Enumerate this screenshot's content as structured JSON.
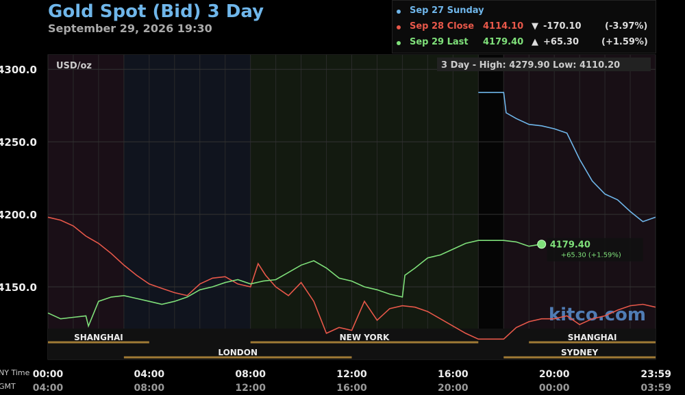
{
  "header": {
    "title": "Gold Spot (Bid) 3 Day",
    "subtitle": "September 29, 2026 19:30"
  },
  "legend": [
    {
      "label": "Sep 27 Sunday",
      "value": "",
      "arrow": "",
      "change": "",
      "pct": "",
      "color": "#6fb6ea"
    },
    {
      "label": "Sep 28 Close",
      "value": "4114.10",
      "arrow": "▼",
      "change": "-170.10",
      "pct": "(-3.97%)",
      "color": "#e8584a"
    },
    {
      "label": "Sep 29 Last",
      "value": "4179.40",
      "arrow": "▲",
      "change": "+65.30",
      "pct": "(+1.59%)",
      "color": "#7fe07a"
    }
  ],
  "chart_data": {
    "type": "line",
    "unit_label": "USD/oz",
    "range_label": "3 Day - High: 4279.90   Low: 4110.20",
    "ylim": [
      4100,
      4310
    ],
    "y_ticks": [
      "4300.0",
      "4250.0",
      "4200.0",
      "4150.0"
    ],
    "y_tick_values": [
      4300,
      4250,
      4200,
      4150
    ],
    "x_range_hours": [
      0,
      24
    ],
    "x_tick_labels_ny": [
      "00:00",
      "04:00",
      "08:00",
      "12:00",
      "16:00",
      "20:00",
      "23:59"
    ],
    "x_tick_labels_gmt": [
      "04:00",
      "08:00",
      "12:00",
      "16:00",
      "20:00",
      "00:00",
      "03:59"
    ],
    "x_tick_hours": [
      0,
      4,
      8,
      12,
      16,
      20,
      24
    ],
    "axis_row_labels": [
      "NY Time",
      "GMT"
    ],
    "watermark": "kitco.com",
    "sessions": [
      {
        "name": "SHANGHAI",
        "start": 0,
        "end": 4,
        "row": 0
      },
      {
        "name": "LONDON",
        "start": 3,
        "end": 12,
        "row": 1
      },
      {
        "name": "NEW YORK",
        "start": 8,
        "end": 17,
        "row": 0
      },
      {
        "name": "SHANGHAI",
        "start": 19,
        "end": 24,
        "row": 0
      },
      {
        "name": "SYDNEY",
        "start": 18,
        "end": 24,
        "row": 1
      }
    ],
    "series": [
      {
        "name": "Sep 27 Sunday",
        "color": "#6fb6ea",
        "x": [
          17,
          18,
          18.1,
          18.5,
          19,
          19.5,
          20,
          20.5,
          21,
          21.5,
          22,
          22.5,
          23,
          23.5,
          24
        ],
        "y": [
          4284,
          4284,
          4270,
          4266,
          4262,
          4261,
          4259,
          4256,
          4238,
          4223,
          4214,
          4210,
          4202,
          4195,
          4198
        ]
      },
      {
        "name": "Sep 28 Close",
        "color": "#e8584a",
        "x": [
          0,
          0.5,
          1,
          1.5,
          2,
          2.5,
          3,
          3.5,
          4,
          4.5,
          5,
          5.5,
          6,
          6.5,
          7,
          7.5,
          8,
          8.3,
          8.6,
          9,
          9.5,
          10,
          10.5,
          11,
          11.5,
          12,
          12.5,
          13,
          13.5,
          14,
          14.5,
          15,
          15.5,
          16,
          16.5,
          17,
          18,
          18.5,
          19,
          19.5,
          20,
          20.5,
          21,
          21.5,
          22,
          22.5,
          23,
          23.5,
          24
        ],
        "y": [
          4198,
          4196,
          4192,
          4185,
          4180,
          4173,
          4165,
          4158,
          4152,
          4149,
          4146,
          4144,
          4152,
          4156,
          4157,
          4152,
          4150,
          4166,
          4158,
          4150,
          4144,
          4153,
          4140,
          4118,
          4122,
          4120,
          4140,
          4127,
          4135,
          4137,
          4136,
          4133,
          4128,
          4123,
          4118,
          4114,
          4114,
          4122,
          4126,
          4128,
          4128,
          4130,
          4124,
          4128,
          4130,
          4134,
          4137,
          4138,
          4136
        ]
      },
      {
        "name": "Sep 29 Last",
        "color": "#7fe07a",
        "x": [
          0,
          0.5,
          1,
          1.5,
          1.6,
          2,
          2.5,
          3,
          3.5,
          4,
          4.5,
          5,
          5.5,
          6,
          6.5,
          7,
          7.5,
          8,
          8.5,
          9,
          9.5,
          10,
          10.5,
          11,
          11.5,
          12,
          12.5,
          13,
          13.5,
          14,
          14.1,
          14.5,
          15,
          15.5,
          16,
          16.5,
          17,
          18,
          18.5,
          19,
          19.5
        ],
        "y": [
          4132,
          4128,
          4129,
          4130,
          4123,
          4140,
          4143,
          4144,
          4142,
          4140,
          4138,
          4140,
          4143,
          4148,
          4150,
          4153,
          4155,
          4152,
          4154,
          4155,
          4160,
          4165,
          4168,
          4163,
          4156,
          4154,
          4150,
          4148,
          4145,
          4143,
          4158,
          4163,
          4170,
          4172,
          4176,
          4180,
          4182,
          4182,
          4181,
          4178,
          4179.4
        ]
      }
    ],
    "last_point": {
      "x": 19.5,
      "y": 4179.4,
      "price": "4179.40",
      "change": "+65.30 (+1.59%)"
    }
  }
}
